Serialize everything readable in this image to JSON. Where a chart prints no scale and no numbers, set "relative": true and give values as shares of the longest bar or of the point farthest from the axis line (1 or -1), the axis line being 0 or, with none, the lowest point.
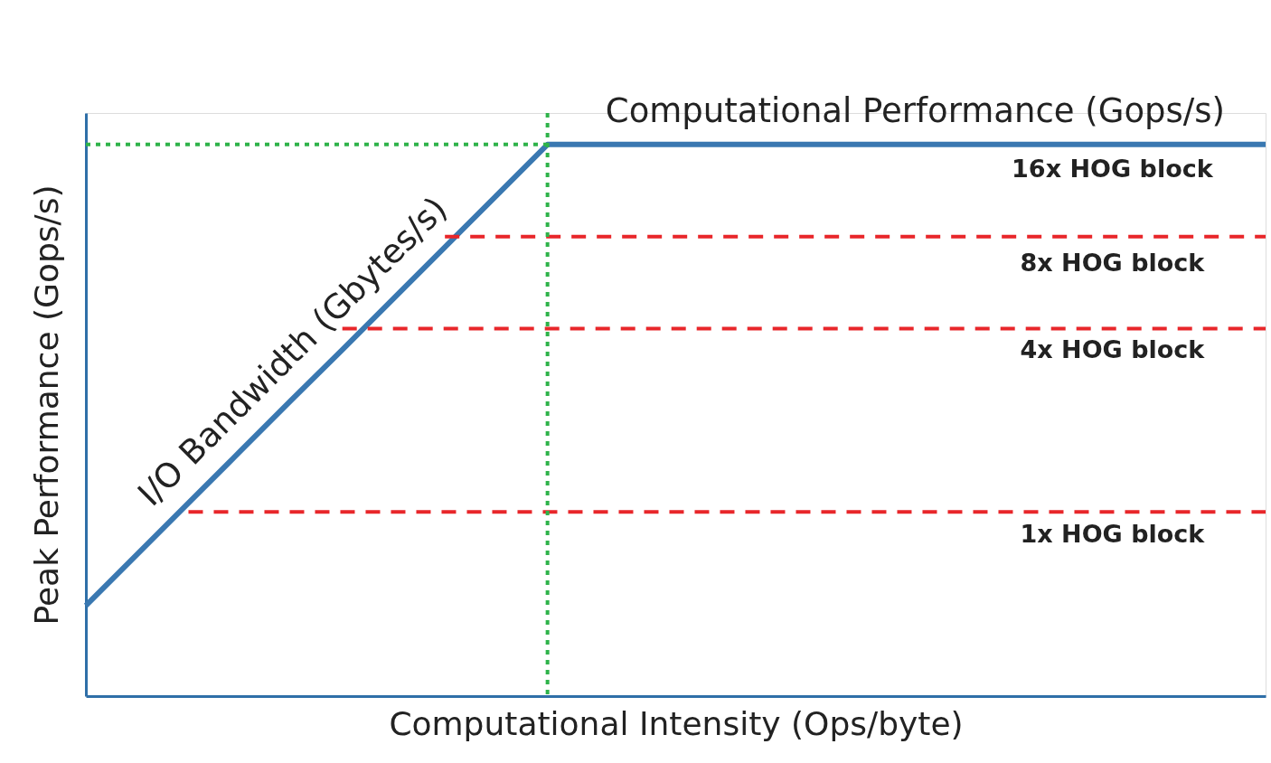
{
  "chart_data": {
    "type": "line",
    "relative": true,
    "xlabel": "Computational Intensity (Ops/byte)",
    "ylabel": "Peak Performance (Gops/s)",
    "tick_labels": false,
    "grid": false,
    "marker": "none",
    "categories": [
      null,
      null,
      null,
      null,
      null,
      null,
      null,
      null,
      null,
      null,
      null,
      null,
      null,
      null,
      null,
      null,
      null,
      null,
      null,
      null,
      null,
      null,
      null,
      null
    ],
    "series": [
      {
        "color": "#3a78b1",
        "line_style": "solid",
        "values": [
          0.164,
          0.257,
          0.35,
          0.443,
          0.536,
          0.628,
          0.721,
          0.814,
          0.907,
          1,
          1,
          1,
          1,
          1,
          1,
          1,
          1,
          1,
          1,
          1,
          1,
          1,
          1,
          1
        ]
      },
      {
        "color": "#2fb34a",
        "line_style": "dotted",
        "values": [
          1,
          1,
          1,
          1,
          1,
          1,
          1,
          1,
          1,
          1,
          null,
          null,
          null,
          null,
          null,
          null,
          null,
          null,
          null,
          null,
          null,
          null,
          null,
          null
        ]
      },
      {
        "color": "#e8262a",
        "line_style": "dashed",
        "values": [
          null,
          null,
          null,
          null,
          null,
          null,
          null,
          0.833,
          0.833,
          0.833,
          0.833,
          0.833,
          0.833,
          0.833,
          0.833,
          0.833,
          0.833,
          0.833,
          0.833,
          0.833,
          0.833,
          0.833,
          0.833,
          0.833
        ]
      },
      {
        "color": "#e8262a",
        "line_style": "dashed",
        "values": [
          null,
          null,
          null,
          null,
          null,
          0.666,
          0.666,
          0.666,
          0.666,
          0.666,
          0.666,
          0.666,
          0.666,
          0.666,
          0.666,
          0.666,
          0.666,
          0.666,
          0.666,
          0.666,
          0.666,
          0.666,
          0.666,
          0.666
        ]
      },
      {
        "color": "#e8262a",
        "line_style": "dashed",
        "values": [
          null,
          null,
          0.334,
          0.334,
          0.334,
          0.334,
          0.334,
          0.334,
          0.334,
          0.334,
          0.334,
          0.334,
          0.334,
          0.334,
          0.334,
          0.334,
          0.334,
          0.334,
          0.334,
          0.334,
          0.334,
          0.334,
          0.334,
          0.334
        ]
      }
    ],
    "annotations": [
      {
        "text": "Computational Performance (Gops/s)",
        "y": 1
      },
      "I/O Bandwidth (Gbytes/s)",
      {
        "text": "16x HOG block",
        "y": 1
      },
      {
        "text": "8x HOG block",
        "y": 0.833
      },
      {
        "text": "4x HOG block",
        "y": 0.666
      },
      {
        "text": "1x HOG block",
        "y": 0.334
      }
    ]
  }
}
